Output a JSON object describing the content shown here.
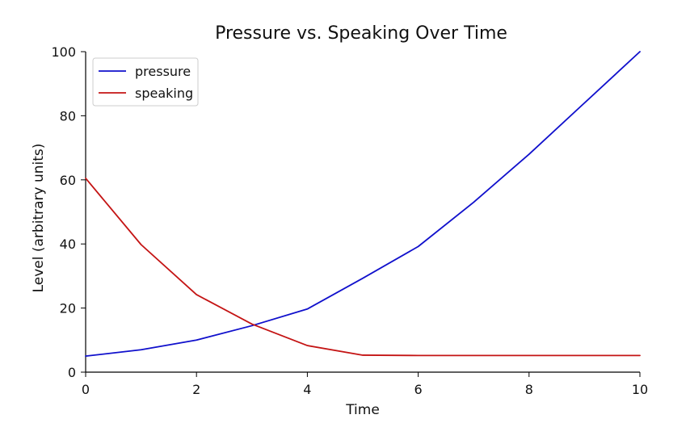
{
  "chart_data": {
    "type": "line",
    "title": "Pressure vs. Speaking Over Time",
    "xlabel": "Time",
    "ylabel": "Level (arbitrary units)",
    "xlim": [
      0,
      10
    ],
    "ylim": [
      0,
      100
    ],
    "x_ticks": [
      0,
      2,
      4,
      6,
      8,
      10
    ],
    "y_ticks": [
      0,
      20,
      40,
      60,
      80,
      100
    ],
    "grid": false,
    "legend_position": "top-left",
    "x": [
      0,
      1,
      2,
      3,
      4,
      5,
      6,
      7,
      8,
      9,
      10
    ],
    "series": [
      {
        "name": "pressure",
        "color": "#1010cc",
        "values": [
          5,
          7,
          10,
          14.5,
          19.7,
          29.3,
          39.2,
          53,
          68,
          84,
          100
        ]
      },
      {
        "name": "speaking",
        "color": "#c41414",
        "values": [
          60.5,
          39.8,
          24.2,
          15,
          8.3,
          5.3,
          5.2,
          5.2,
          5.2,
          5.2,
          5.2
        ]
      }
    ]
  }
}
